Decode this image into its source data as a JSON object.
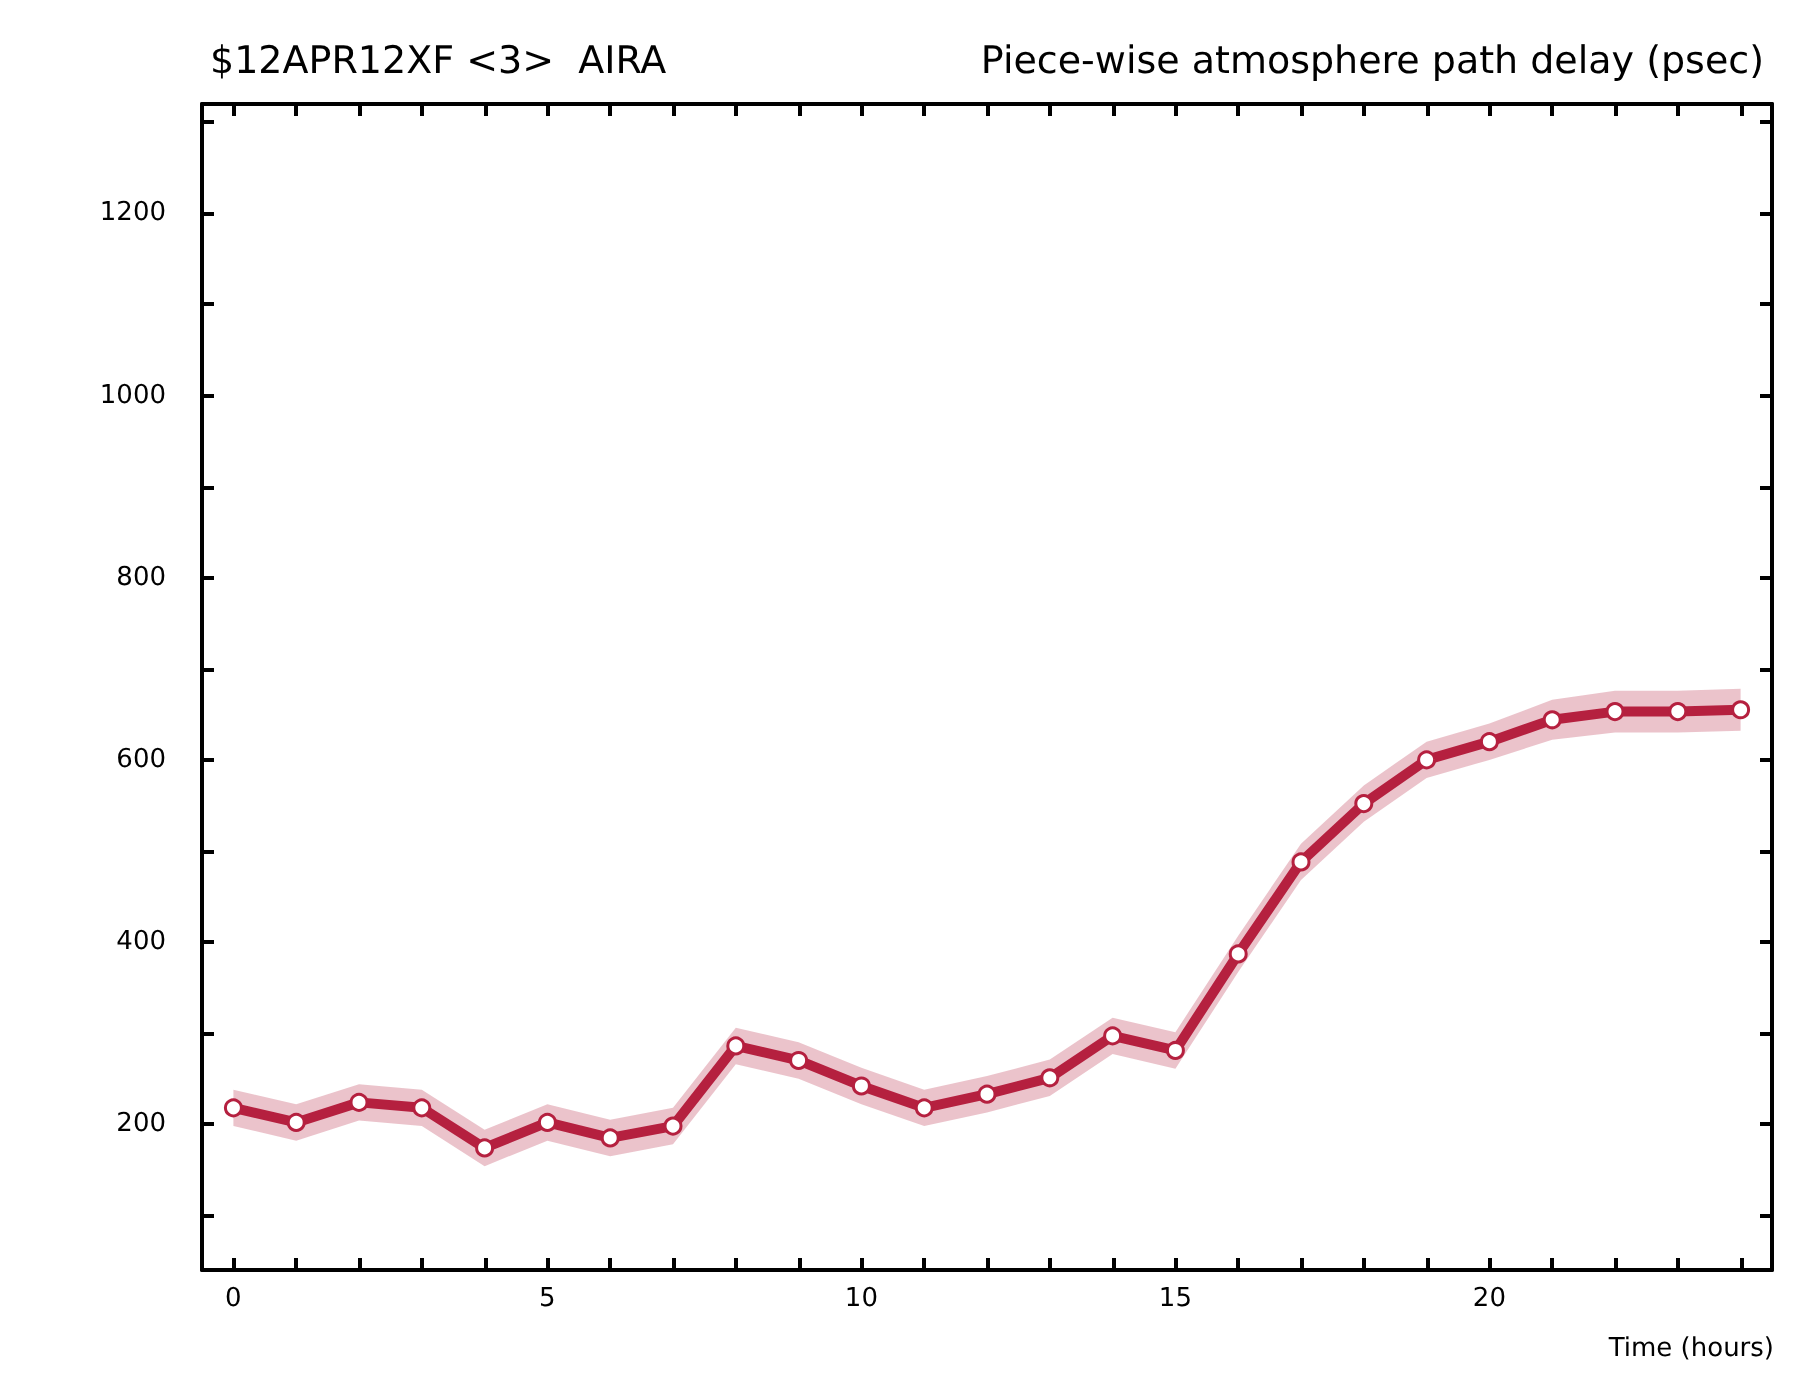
{
  "chart_data": {
    "type": "line",
    "title": "$12APR12XF <3>  AIRA",
    "subtitle": "Piece-wise atmosphere path delay (psec)",
    "xlabel": "Time (hours)",
    "x": [
      0,
      1,
      2,
      3,
      4,
      5,
      6,
      7,
      8,
      9,
      10,
      11,
      12,
      13,
      14,
      15,
      16,
      17,
      18,
      19,
      20,
      21,
      22,
      23,
      24
    ],
    "series": [
      {
        "color": "#b5203f",
        "values": [
          218,
          202,
          224,
          218,
          174,
          202,
          185,
          198,
          286,
          270,
          242,
          218,
          233,
          251,
          297,
          281,
          387,
          488,
          552,
          600,
          620,
          644,
          653,
          653,
          655
        ],
        "lower": [
          198,
          182,
          204,
          198,
          154,
          182,
          165,
          178,
          266,
          250,
          222,
          198,
          213,
          231,
          277,
          261,
          367,
          468,
          532,
          580,
          600,
          622,
          630,
          630,
          632
        ],
        "upper": [
          238,
          222,
          244,
          238,
          194,
          222,
          205,
          218,
          306,
          290,
          262,
          238,
          253,
          271,
          317,
          301,
          407,
          508,
          572,
          620,
          640,
          666,
          676,
          676,
          678
        ]
      }
    ],
    "marker": "circle",
    "line_style": "solid",
    "grid": false,
    "xlim": [
      -0.5,
      24.5
    ],
    "ylim": [
      40,
      1320
    ],
    "xticks": [
      0,
      {
        "value": 1,
        "label": null
      },
      {
        "value": 2,
        "label": null
      },
      {
        "value": 3,
        "label": null
      },
      {
        "value": 4,
        "label": null
      },
      5,
      {
        "value": 6,
        "label": null
      },
      {
        "value": 7,
        "label": null
      },
      {
        "value": 8,
        "label": null
      },
      {
        "value": 9,
        "label": null
      },
      10,
      {
        "value": 11,
        "label": null
      },
      {
        "value": 12,
        "label": null
      },
      {
        "value": 13,
        "label": null
      },
      {
        "value": 14,
        "label": null
      },
      15,
      {
        "value": 16,
        "label": null
      },
      {
        "value": 17,
        "label": null
      },
      {
        "value": 18,
        "label": null
      },
      {
        "value": 19,
        "label": null
      },
      20,
      {
        "value": 21,
        "label": null
      },
      {
        "value": 22,
        "label": null
      },
      {
        "value": 23,
        "label": null
      },
      {
        "value": 24,
        "label": null
      }
    ],
    "yticks": [
      {
        "value": 100,
        "label": null
      },
      200,
      {
        "value": 300,
        "label": null
      },
      400,
      {
        "value": 500,
        "label": null
      },
      600,
      {
        "value": 700,
        "label": null
      },
      800,
      {
        "value": 900,
        "label": null
      },
      1000,
      {
        "value": 1100,
        "label": null
      },
      1200,
      {
        "value": 1300,
        "label": null
      }
    ]
  }
}
